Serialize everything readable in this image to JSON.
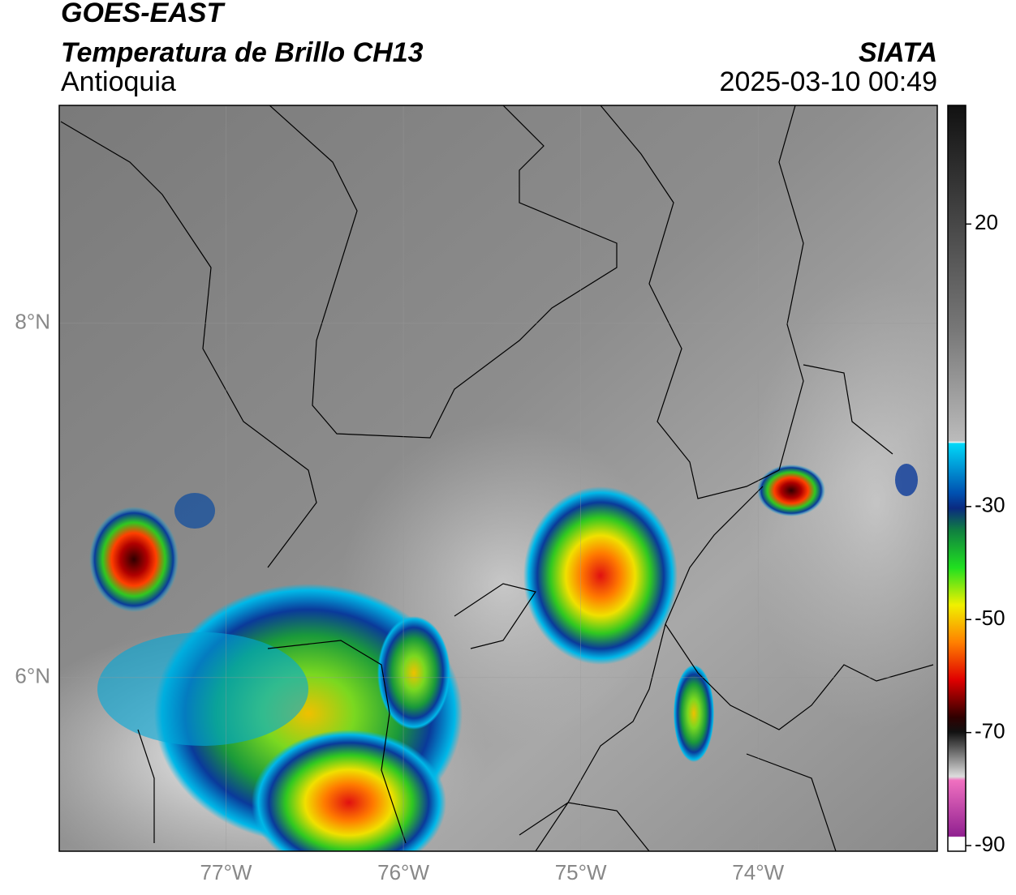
{
  "header": {
    "title": "GOES-EAST",
    "subtitle": "Temperatura de Brillo CH13",
    "region": "Antioquia",
    "source": "SIATA",
    "datetime": "2025-03-10 00:49"
  },
  "map": {
    "xlim": [
      -77.94,
      -72.99
    ],
    "ylim": [
      5.02,
      9.23
    ],
    "xticks": [
      {
        "value": -77,
        "label": "77°W"
      },
      {
        "value": -76,
        "label": "76°W"
      },
      {
        "value": -75,
        "label": "75°W"
      },
      {
        "value": -74,
        "label": "74°W"
      }
    ],
    "yticks": [
      {
        "value": 8,
        "label": "8°N"
      },
      {
        "value": 6,
        "label": "6°N"
      }
    ],
    "grid": true
  },
  "colorbar": {
    "range": [
      -91,
      41
    ],
    "ticks": [
      20,
      -30,
      -50,
      -70,
      -90
    ]
  }
}
